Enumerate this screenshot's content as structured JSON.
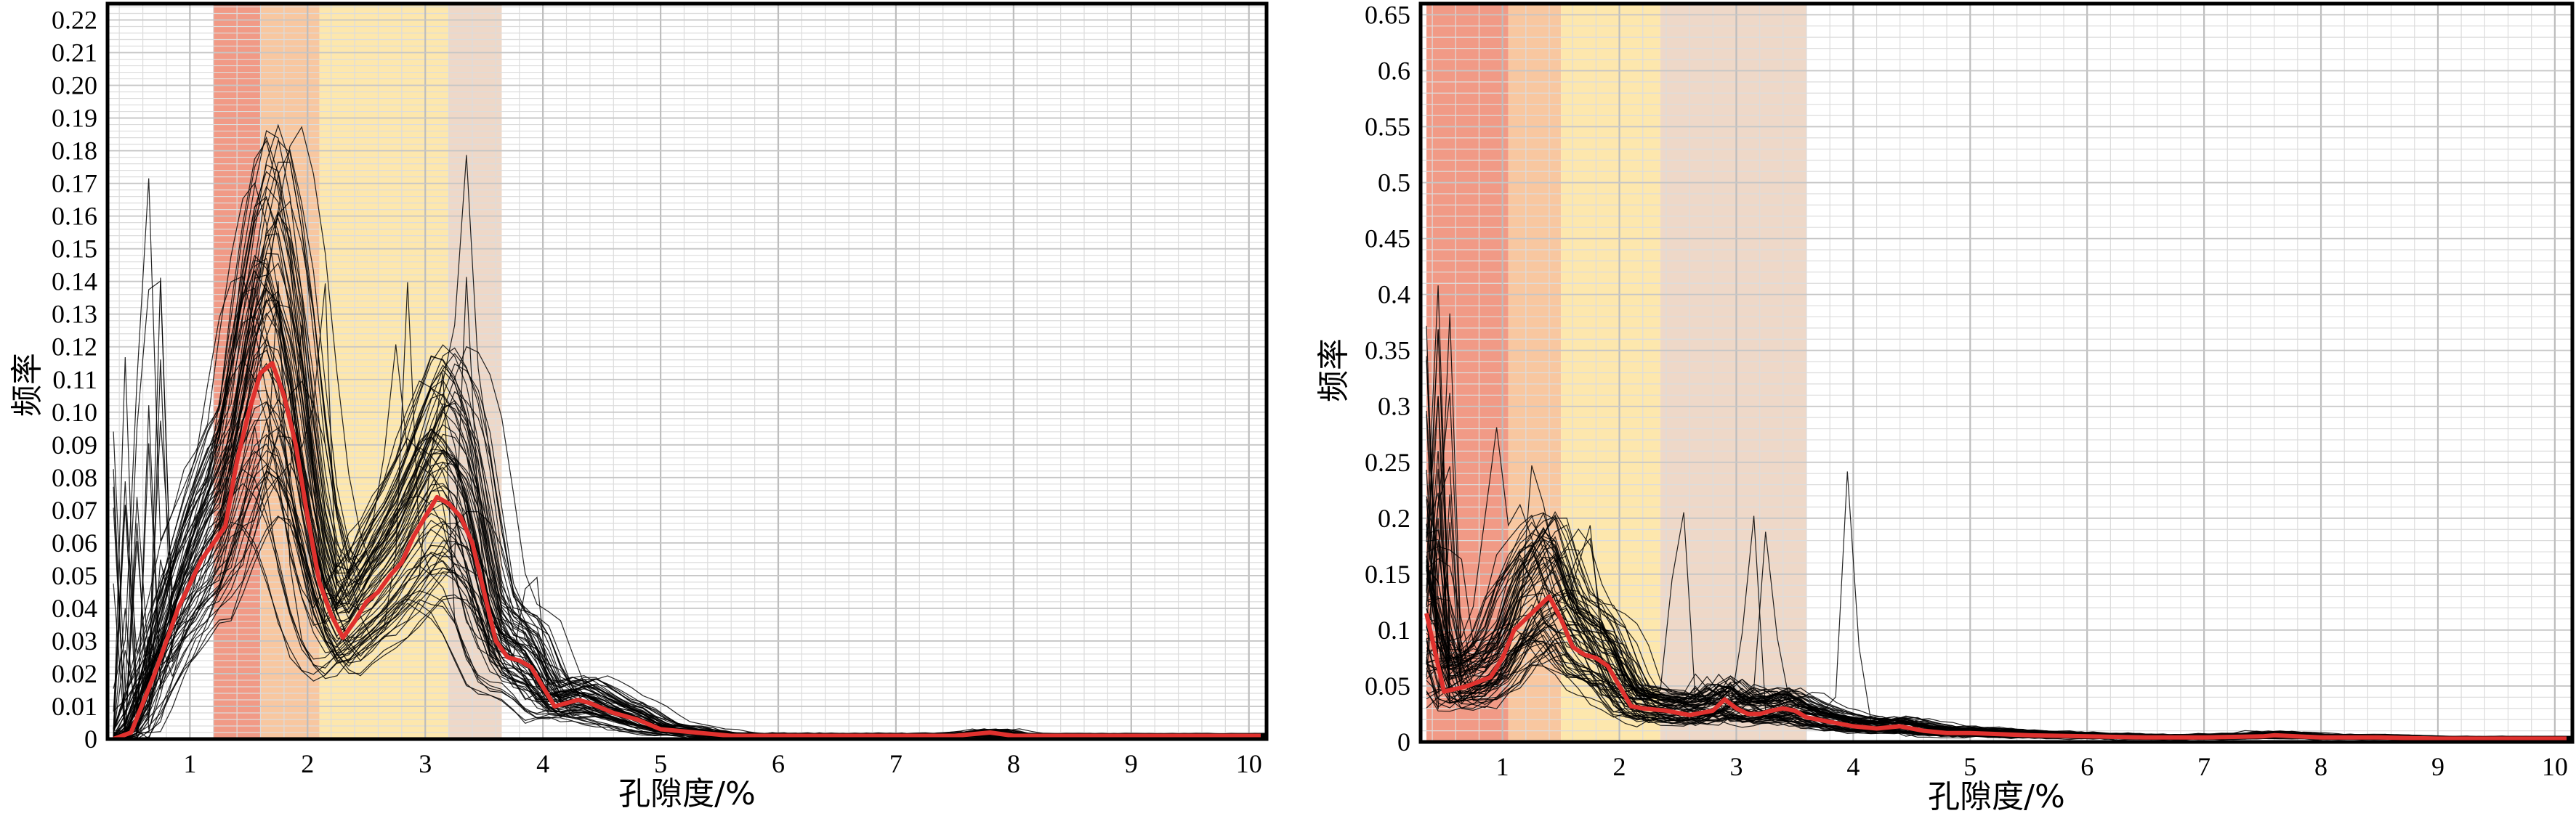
{
  "chart_data": [
    {
      "type": "line",
      "xlabel": "孔隙度/%",
      "ylabel": "频率",
      "xlim": [
        0.3,
        10.15
      ],
      "ylim": [
        0,
        0.225
      ],
      "x_ticks": [
        1,
        2,
        3,
        4,
        5,
        6,
        7,
        8,
        9,
        10
      ],
      "y_ticks": [
        0,
        0.01,
        0.02,
        0.03,
        0.04,
        0.05,
        0.06,
        0.07,
        0.08,
        0.09,
        0.1,
        0.11,
        0.12,
        0.13,
        0.14,
        0.15,
        0.16,
        0.17,
        0.18,
        0.19,
        0.2,
        0.21,
        0.22
      ],
      "y_tick_labels": [
        "0",
        "0.01",
        "0.02",
        "0.03",
        "0.04",
        "0.05",
        "0.06",
        "0.07",
        "0.08",
        "0.09",
        "0.10",
        "0.11",
        "0.12",
        "0.13",
        "0.14",
        "0.15",
        "0.16",
        "0.17",
        "0.18",
        "0.19",
        "0.20",
        "0.21",
        "0.22"
      ],
      "grid": true,
      "bands": [
        {
          "from": 1.2,
          "to": 1.6,
          "color": "#f19a86"
        },
        {
          "from": 1.6,
          "to": 2.1,
          "color": "#f8c7a0"
        },
        {
          "from": 2.1,
          "to": 3.2,
          "color": "#fde7ad"
        },
        {
          "from": 3.2,
          "to": 3.65,
          "color": "#eed8c8"
        }
      ],
      "background_series_color": "#000000",
      "highlight_series": {
        "color": "#e0312e",
        "x": [
          0.35,
          0.5,
          0.7,
          0.9,
          1.1,
          1.3,
          1.4,
          1.5,
          1.6,
          1.7,
          1.8,
          1.9,
          2.0,
          2.1,
          2.2,
          2.3,
          2.4,
          2.5,
          2.6,
          2.7,
          2.8,
          2.9,
          3.0,
          3.1,
          3.2,
          3.3,
          3.4,
          3.5,
          3.6,
          3.7,
          3.8,
          3.9,
          4.0,
          4.1,
          4.2,
          4.3,
          4.4,
          4.6,
          4.8,
          5.0,
          5.3,
          5.6,
          6.0,
          6.5,
          7.0,
          7.5,
          7.8,
          8.0,
          8.5,
          9.0,
          9.5,
          10.1
        ],
        "y": [
          0,
          0.002,
          0.02,
          0.04,
          0.055,
          0.065,
          0.085,
          0.1,
          0.112,
          0.115,
          0.105,
          0.09,
          0.068,
          0.048,
          0.038,
          0.031,
          0.036,
          0.042,
          0.045,
          0.05,
          0.054,
          0.062,
          0.068,
          0.074,
          0.072,
          0.068,
          0.06,
          0.045,
          0.03,
          0.025,
          0.024,
          0.022,
          0.016,
          0.01,
          0.011,
          0.012,
          0.011,
          0.008,
          0.006,
          0.003,
          0.002,
          0.001,
          0.001,
          0.001,
          0.001,
          0.001,
          0.002,
          0.001,
          0.001,
          0.001,
          0.001,
          0.001
        ]
      }
    },
    {
      "type": "line",
      "xlabel": "孔隙度/%",
      "ylabel": "频率",
      "xlim": [
        0.3,
        10.15
      ],
      "ylim": [
        0,
        0.66
      ],
      "x_ticks": [
        1,
        2,
        3,
        4,
        5,
        6,
        7,
        8,
        9,
        10
      ],
      "y_ticks": [
        0,
        0.05,
        0.1,
        0.15,
        0.2,
        0.25,
        0.3,
        0.35,
        0.4,
        0.45,
        0.5,
        0.55,
        0.6,
        0.65
      ],
      "y_tick_labels": [
        "0",
        "0.05",
        "0.1",
        "0.15",
        "0.2",
        "0.25",
        "0.3",
        "0.35",
        "0.4",
        "0.45",
        "0.5",
        "0.55",
        "0.6",
        "0.65"
      ],
      "grid": true,
      "bands": [
        {
          "from": 0.35,
          "to": 1.05,
          "color": "#f19a86"
        },
        {
          "from": 1.05,
          "to": 1.5,
          "color": "#f8c7a0"
        },
        {
          "from": 1.5,
          "to": 2.35,
          "color": "#fde7ad"
        },
        {
          "from": 2.35,
          "to": 3.6,
          "color": "#eed8c8"
        }
      ],
      "background_series_color": "#000000",
      "highlight_series": {
        "color": "#e0312e",
        "x": [
          0.35,
          0.5,
          0.7,
          0.9,
          1.0,
          1.1,
          1.2,
          1.3,
          1.4,
          1.5,
          1.6,
          1.7,
          1.8,
          1.9,
          2.0,
          2.1,
          2.2,
          2.4,
          2.6,
          2.8,
          2.9,
          3.0,
          3.1,
          3.2,
          3.3,
          3.4,
          3.5,
          3.6,
          3.8,
          4.0,
          4.2,
          4.4,
          4.6,
          4.8,
          5.0,
          5.5,
          6.0,
          6.5,
          7.0,
          7.5,
          7.6,
          8.0,
          8.5,
          9.0,
          9.5,
          10.1
        ],
        "y": [
          0.115,
          0.045,
          0.05,
          0.058,
          0.075,
          0.1,
          0.11,
          0.12,
          0.13,
          0.11,
          0.085,
          0.078,
          0.075,
          0.068,
          0.05,
          0.032,
          0.03,
          0.028,
          0.024,
          0.028,
          0.038,
          0.03,
          0.025,
          0.025,
          0.028,
          0.03,
          0.028,
          0.022,
          0.018,
          0.014,
          0.012,
          0.014,
          0.01,
          0.008,
          0.008,
          0.006,
          0.005,
          0.004,
          0.004,
          0.005,
          0.006,
          0.004,
          0.004,
          0.003,
          0.003,
          0.003
        ]
      }
    }
  ]
}
